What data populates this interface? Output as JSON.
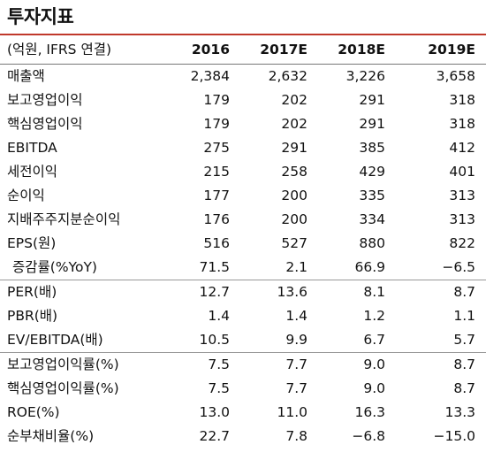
{
  "title": "투자지표",
  "header": [
    "(억원, IFRS 연결)",
    "2016",
    "2017E",
    "2018E",
    "2019E"
  ],
  "rows": [
    [
      "매출액",
      "2,384",
      "2,632",
      "3,226",
      "3,658"
    ],
    [
      "보고영업이익",
      "179",
      "202",
      "291",
      "318"
    ],
    [
      "핵심영업이익",
      "179",
      "202",
      "291",
      "318"
    ],
    [
      "EBITDA",
      "275",
      "291",
      "385",
      "412"
    ],
    [
      "세전이익",
      "215",
      "258",
      "429",
      "401"
    ],
    [
      "순이익",
      "177",
      "200",
      "335",
      "313"
    ],
    [
      "지배주주지분순이익",
      "176",
      "200",
      "334",
      "313"
    ],
    [
      "EPS(원)",
      "516",
      "527",
      "880",
      "822"
    ],
    [
      "증감률(%YoY)",
      "71.5",
      "2.1",
      "66.9",
      "−6.5"
    ],
    [
      "PER(배)",
      "12.7",
      "13.6",
      "8.1",
      "8.7"
    ],
    [
      "PBR(배)",
      "1.4",
      "1.4",
      "1.2",
      "1.1"
    ],
    [
      "EV/EBITDA(배)",
      "10.5",
      "9.9",
      "6.7",
      "5.7"
    ],
    [
      "보고영업이익률(%)",
      "7.5",
      "7.7",
      "9.0",
      "8.7"
    ],
    [
      "핵심영업이익률(%)",
      "7.5",
      "7.7",
      "9.0",
      "8.7"
    ],
    [
      "ROE(%)",
      "13.0",
      "11.0",
      "16.3",
      "13.3"
    ],
    [
      "순부채비율(%)",
      "22.7",
      "7.8",
      "−6.8",
      "−15.0"
    ]
  ]
}
